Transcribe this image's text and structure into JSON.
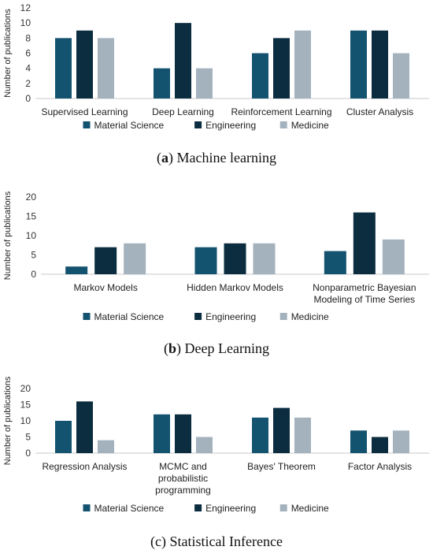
{
  "colors": {
    "Material Science": "#145370",
    "Engineering": "#0b2d3f",
    "Medicine": "#a4b2be"
  },
  "captions": [
    {
      "prefix": "(",
      "letter": "a",
      "suffix": ") Machine learning",
      "bold": true
    },
    {
      "prefix": "(",
      "letter": "b",
      "suffix": ") Deep Learning",
      "bold": true
    },
    {
      "prefix": "",
      "letter": "",
      "suffix": "(c) Statistical Inference",
      "bold": false
    }
  ],
  "chart_data": [
    {
      "type": "bar",
      "ylabel": "Number of publications",
      "ylim": [
        0,
        12
      ],
      "yticks": [
        0,
        2,
        4,
        6,
        8,
        10,
        12
      ],
      "grid": false,
      "legend": "bottom",
      "categories": [
        [
          "Supervised Learning"
        ],
        [
          "Deep Learning"
        ],
        [
          "Reinforcement Learning"
        ],
        [
          "Cluster Analysis"
        ]
      ],
      "series": [
        {
          "name": "Material Science",
          "values": [
            8,
            4,
            6,
            9
          ]
        },
        {
          "name": "Engineering",
          "values": [
            9,
            10,
            8,
            9
          ]
        },
        {
          "name": "Medicine",
          "values": [
            8,
            4,
            9,
            6
          ]
        }
      ]
    },
    {
      "type": "bar",
      "ylabel": "Number of publications",
      "ylim": [
        0,
        20
      ],
      "yticks": [
        0,
        5,
        10,
        15,
        20
      ],
      "grid": false,
      "legend": "bottom",
      "categories": [
        [
          "Markov Models"
        ],
        [
          "Hidden Markov Models"
        ],
        [
          "Nonparametric Bayesian",
          "Modeling of Time Series"
        ]
      ],
      "series": [
        {
          "name": "Material Science",
          "values": [
            2,
            7,
            6
          ]
        },
        {
          "name": "Engineering",
          "values": [
            7,
            8,
            16
          ]
        },
        {
          "name": "Medicine",
          "values": [
            8,
            8,
            9
          ]
        }
      ]
    },
    {
      "type": "bar",
      "ylabel": "Number of publications",
      "ylim": [
        0,
        20
      ],
      "yticks": [
        0,
        5,
        10,
        15,
        20
      ],
      "grid": false,
      "legend": "bottom",
      "categories": [
        [
          "Regression Analysis"
        ],
        [
          "MCMC and",
          "probabilistic",
          "programming"
        ],
        [
          "Bayes' Theorem"
        ],
        [
          "Factor Analysis"
        ]
      ],
      "series": [
        {
          "name": "Material Science",
          "values": [
            10,
            12,
            11,
            7
          ]
        },
        {
          "name": "Engineering",
          "values": [
            16,
            12,
            14,
            5
          ]
        },
        {
          "name": "Medicine",
          "values": [
            4,
            5,
            11,
            7
          ]
        }
      ]
    }
  ]
}
